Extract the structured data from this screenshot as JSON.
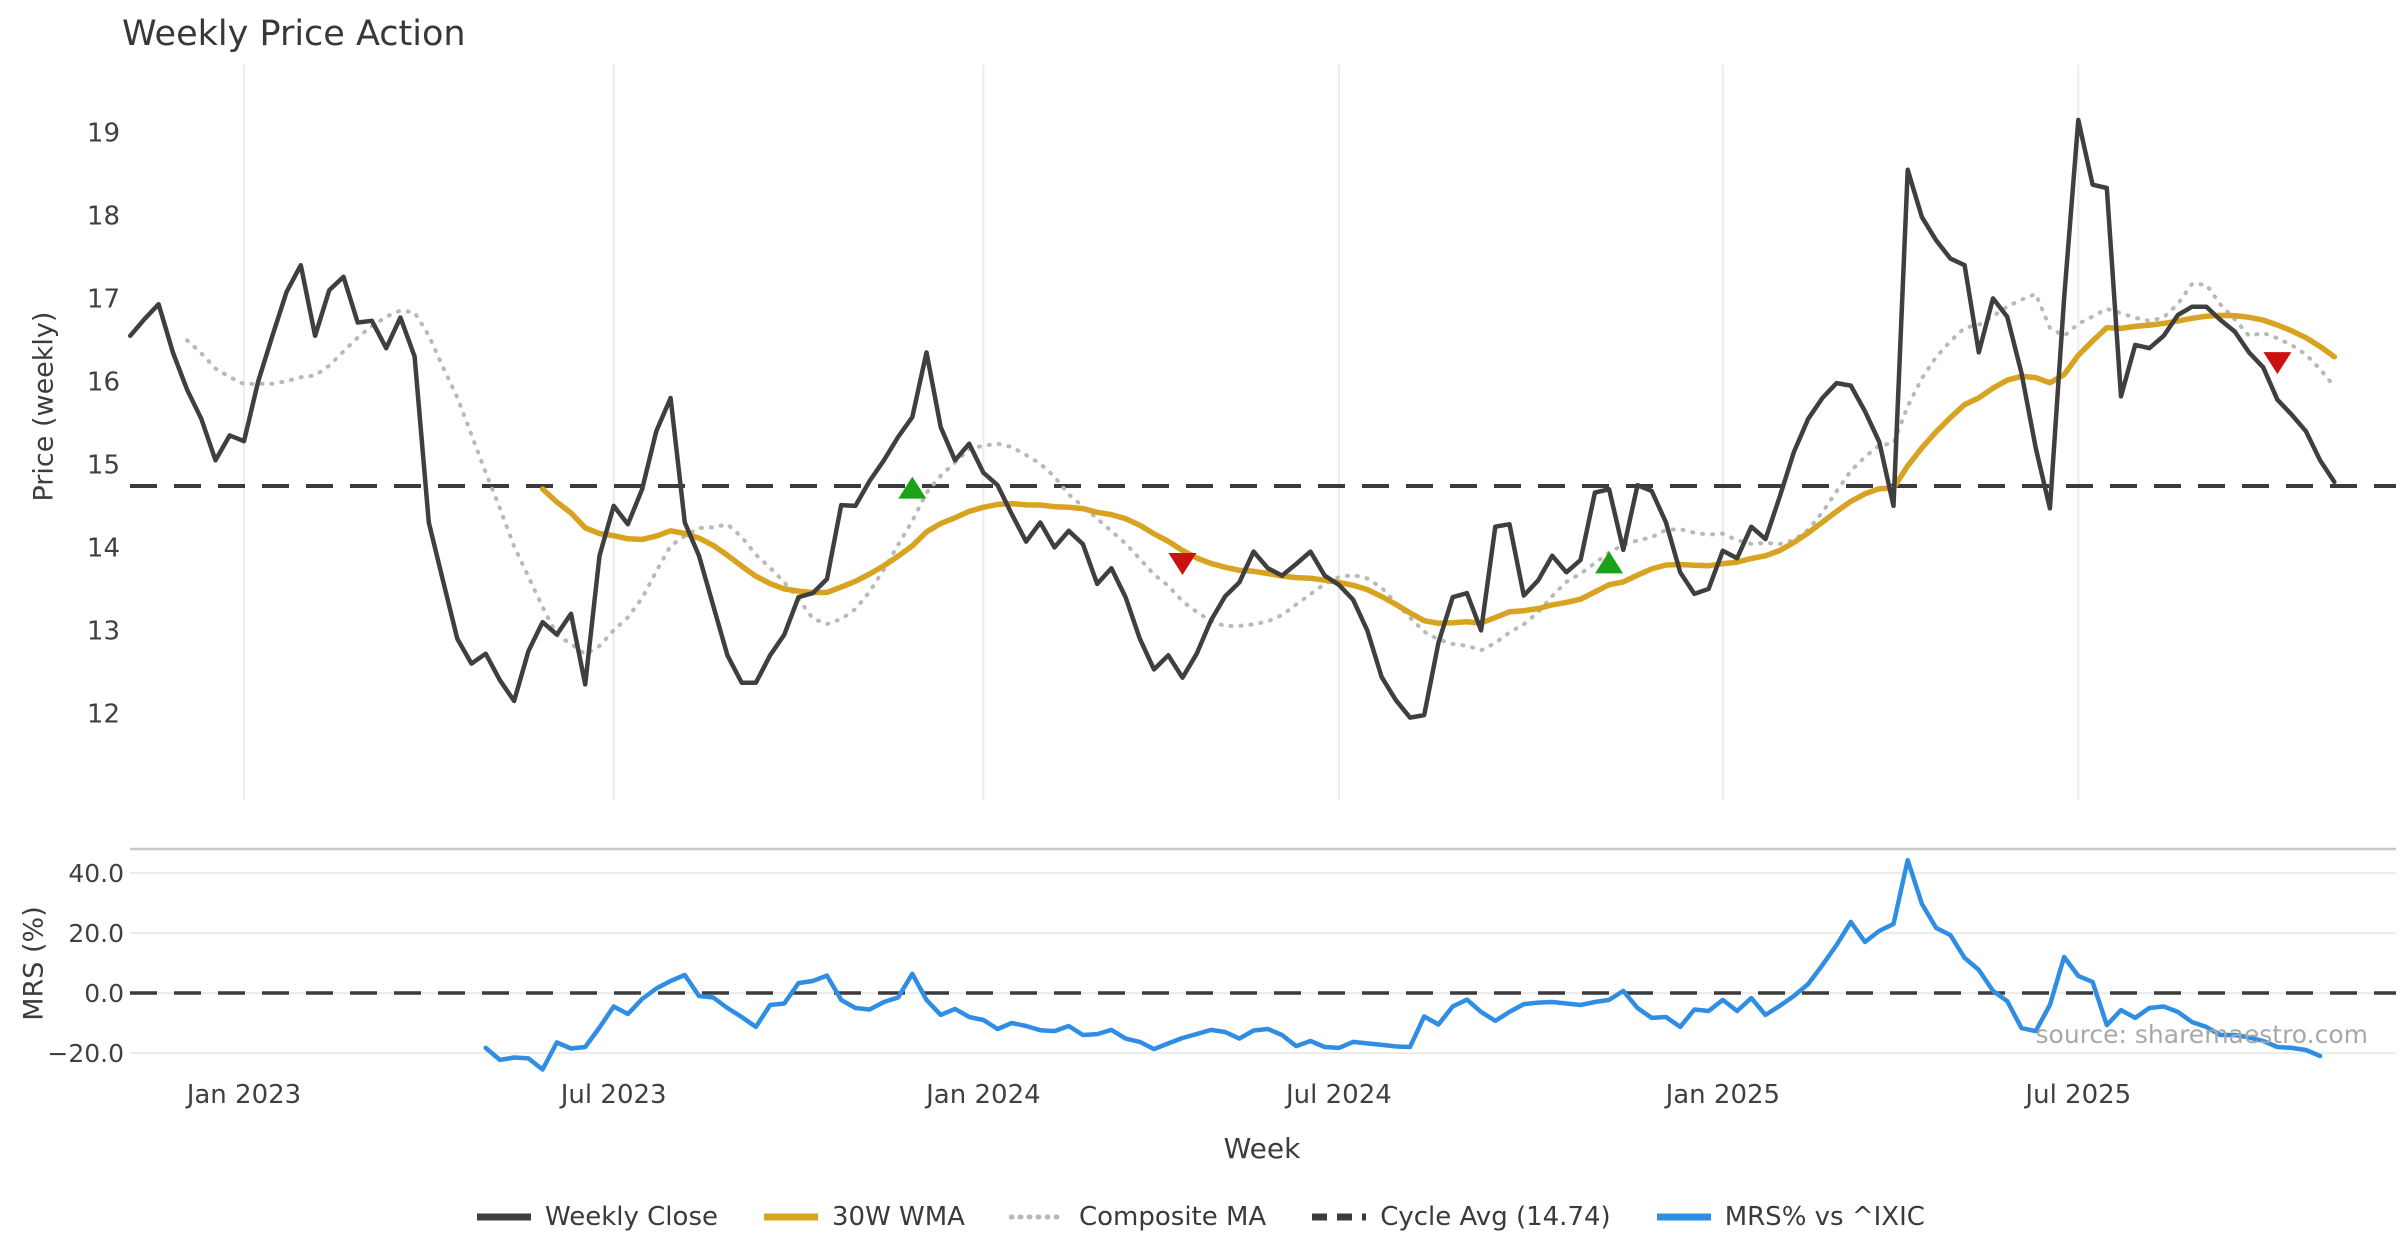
{
  "title": "Weekly Price Action",
  "xlabel": "Week",
  "watermark": "source: sharemaestro.com",
  "price_panel": {
    "ylabel": "Price (weekly)"
  },
  "mrs_panel": {
    "ylabel": "MRS (%)",
    "ytick_labels": [
      "40.0",
      "20.0",
      "0.0",
      "−20.0"
    ]
  },
  "legend": [
    {
      "label": "Weekly Close",
      "color": "#3f3f3f",
      "style": "solid"
    },
    {
      "label": "30W WMA",
      "color": "#d7a321",
      "style": "solid"
    },
    {
      "label": "Composite MA",
      "color": "#b9b9b9",
      "style": "dotted"
    },
    {
      "label": "Cycle Avg (14.74)",
      "color": "#3b3b3b",
      "style": "dashed"
    },
    {
      "label": "MRS% vs ^IXIC",
      "color": "#2f8ee3",
      "style": "solid"
    }
  ],
  "chart_data": {
    "type": "line",
    "title": "Weekly Price Action",
    "xlabel": "Week",
    "x_tick_labels": [
      "Jan 2023",
      "Jul 2023",
      "Jan 2024",
      "Jul 2024",
      "Jan 2025",
      "Jul 2025"
    ],
    "x_tick_weeks": [
      8,
      34,
      60,
      85,
      112,
      137
    ],
    "total_weeks": 156,
    "grid": "vertical-top-panel, horizontal-bottom-panel",
    "legend_position": "bottom-center",
    "price": {
      "ylabel": "Price (weekly)",
      "yticks": [
        12,
        13,
        14,
        15,
        16,
        17,
        18,
        19
      ],
      "ylim": [
        10.96,
        19.81
      ],
      "cycle_avg": 14.74,
      "wma_window": 30,
      "composite_window": 10,
      "composite_min_periods": 5,
      "weekly_close": [
        16.55,
        16.75,
        16.93,
        16.35,
        15.9,
        15.55,
        15.05,
        15.35,
        15.28,
        16.0,
        16.55,
        17.08,
        17.4,
        16.55,
        17.1,
        17.26,
        16.71,
        16.73,
        16.4,
        16.77,
        16.3,
        14.3,
        13.6,
        12.9,
        12.6,
        12.72,
        12.4,
        12.15,
        12.75,
        13.1,
        12.95,
        13.2,
        12.35,
        13.9,
        14.5,
        14.28,
        14.7,
        15.4,
        15.8,
        14.3,
        13.9,
        13.3,
        12.7,
        12.37,
        12.37,
        12.7,
        12.95,
        13.4,
        13.45,
        13.62,
        14.51,
        14.5,
        14.8,
        15.05,
        15.33,
        15.57,
        16.35,
        15.45,
        15.05,
        15.25,
        14.9,
        14.75,
        14.4,
        14.07,
        14.3,
        14.0,
        14.2,
        14.04,
        13.56,
        13.75,
        13.4,
        12.9,
        12.53,
        12.7,
        12.43,
        12.72,
        13.12,
        13.41,
        13.58,
        13.95,
        13.75,
        13.66,
        13.8,
        13.95,
        13.66,
        13.55,
        13.37,
        13.0,
        12.44,
        12.16,
        11.95,
        11.98,
        12.85,
        13.4,
        13.45,
        13.0,
        14.25,
        14.28,
        13.42,
        13.6,
        13.9,
        13.7,
        13.85,
        14.66,
        14.7,
        13.97,
        14.75,
        14.68,
        14.3,
        13.7,
        13.44,
        13.5,
        13.96,
        13.87,
        14.25,
        14.1,
        14.61,
        15.15,
        15.55,
        15.8,
        15.98,
        15.95,
        15.64,
        15.27,
        14.5,
        18.55,
        17.98,
        17.7,
        17.48,
        17.4,
        16.35,
        17.0,
        16.78,
        16.1,
        15.2,
        14.47,
        17.0,
        19.15,
        18.37,
        18.33,
        15.82,
        16.44,
        16.4,
        16.55,
        16.8,
        16.9,
        16.9,
        16.74,
        16.6,
        16.35,
        16.17,
        15.78,
        15.6,
        15.4,
        15.05,
        14.79
      ]
    },
    "mrs": {
      "ylabel": "MRS (%)",
      "yticks": [
        -20,
        0,
        20,
        40
      ],
      "ylim": [
        -23,
        48
      ],
      "zero_line": 0,
      "start_week": 25,
      "values": [
        -18.3,
        -22.3,
        -21.5,
        -21.8,
        -25.5,
        -16.5,
        -18.5,
        -18.0,
        -11.5,
        -4.5,
        -7.0,
        -2.0,
        1.5,
        4.0,
        6.0,
        -1.0,
        -1.5,
        -5.0,
        -8.0,
        -11.3,
        -4.0,
        -3.5,
        3.3,
        4.0,
        5.8,
        -2.3,
        -5.0,
        -5.5,
        -3.0,
        -1.5,
        6.4,
        -2.3,
        -7.3,
        -5.3,
        -8.0,
        -9.0,
        -12.0,
        -10.0,
        -11.0,
        -12.4,
        -12.7,
        -11.0,
        -14.0,
        -13.7,
        -12.3,
        -15.2,
        -16.3,
        -18.7,
        -16.8,
        -15.0,
        -13.7,
        -12.3,
        -13.0,
        -15.2,
        -12.5,
        -12.0,
        -14.0,
        -17.7,
        -16.0,
        -18.0,
        -18.3,
        -16.3,
        -16.8,
        -17.3,
        -17.8,
        -18.0,
        -7.8,
        -10.5,
        -4.5,
        -2.2,
        -6.3,
        -9.3,
        -6.3,
        -3.7,
        -3.2,
        -3.0,
        -3.5,
        -4.0,
        -3.0,
        -2.3,
        0.7,
        -5.0,
        -8.3,
        -8.0,
        -11.3,
        -5.5,
        -6.0,
        -2.3,
        -6.0,
        -1.7,
        -7.3,
        -4.3,
        -1.0,
        3.0,
        9.3,
        16.0,
        23.7,
        17.0,
        20.7,
        23.0,
        44.3,
        29.7,
        21.7,
        19.3,
        11.7,
        7.7,
        0.7,
        -2.7,
        -11.7,
        -12.7,
        -4.0,
        12.0,
        5.7,
        3.7,
        -10.7,
        -5.7,
        -8.3,
        -5.0,
        -4.5,
        -6.3,
        -9.7,
        -11.3,
        -14.0,
        -14.0,
        -14.8,
        -16.0,
        -18.0,
        -18.3,
        -19.0,
        -21.0
      ]
    },
    "markers": [
      {
        "week": 55,
        "price": 14.72,
        "type": "buy"
      },
      {
        "week": 74,
        "price": 13.8,
        "type": "sell"
      },
      {
        "week": 104,
        "price": 13.82,
        "type": "buy"
      },
      {
        "week": 151,
        "price": 16.22,
        "type": "sell"
      }
    ],
    "colors": {
      "close": "#3f3f3f",
      "wma": "#d7a321",
      "composite": "#b9b9b9",
      "cycle": "#3b3b3b",
      "mrs": "#2f8ee3",
      "buy": "#18a318",
      "sell": "#cc1111",
      "grid": "#ececec",
      "spine": "#c8c8c8",
      "tick_text": "#404040"
    }
  }
}
